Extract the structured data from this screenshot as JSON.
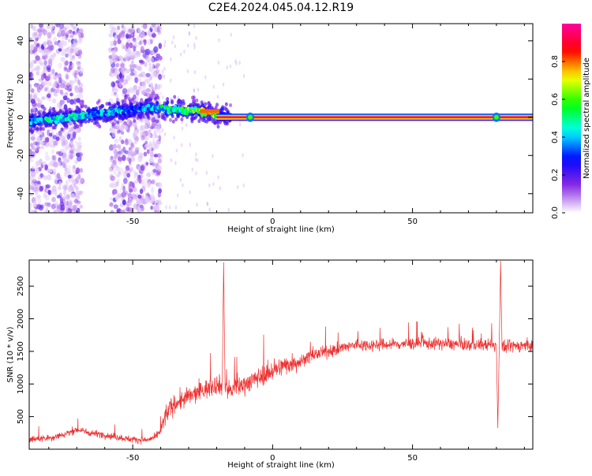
{
  "title": "C2E4.2024.045.04.12.R19",
  "chart_data": [
    {
      "type": "heatmap",
      "xlabel": "Height of straight line (km)",
      "ylabel": "Frequency (Hz)",
      "xlim": [
        -87,
        93
      ],
      "ylim": [
        -50,
        49
      ],
      "xticks": [
        -50,
        0,
        50
      ],
      "yticks": [
        -40,
        -20,
        0,
        20,
        40
      ],
      "colorbar": {
        "label": "Normalized spectral amplitude",
        "range": [
          0,
          1
        ],
        "ticks": [
          "0.0",
          "0.2",
          "0.4",
          "0.6",
          "0.8"
        ],
        "colormap": [
          "#ffffff",
          "#8a2be2",
          "#0000ff",
          "#00ffff",
          "#00ff00",
          "#ffff00",
          "#ff0000",
          "#ff00a0"
        ]
      },
      "ridge": [
        {
          "x": -87,
          "y": -2,
          "amp": 0.45
        },
        {
          "x": -80,
          "y": -1,
          "amp": 0.5
        },
        {
          "x": -72,
          "y": 0,
          "amp": 0.5
        },
        {
          "x": -62,
          "y": 2,
          "amp": 0.45
        },
        {
          "x": -55,
          "y": 3,
          "amp": 0.45
        },
        {
          "x": -50,
          "y": 4,
          "amp": 0.35
        },
        {
          "x": -42,
          "y": 5,
          "amp": 0.5
        },
        {
          "x": -35,
          "y": 4,
          "amp": 0.55
        },
        {
          "x": -25,
          "y": 3,
          "amp": 0.75
        },
        {
          "x": -20,
          "y": 1,
          "amp": 0.9
        },
        {
          "x": 0,
          "y": 0,
          "amp": 1.0
        },
        {
          "x": 50,
          "y": 0,
          "amp": 1.0
        },
        {
          "x": 93,
          "y": 0,
          "amp": 1.0
        }
      ],
      "noise_bands_x": [
        [
          -87,
          -68
        ],
        [
          -58,
          -40
        ]
      ]
    },
    {
      "type": "line",
      "xlabel": "Height of straight line (km)",
      "ylabel": "SNR (10 * v/v)",
      "xlim": [
        -87,
        93
      ],
      "ylim": [
        0,
        2900
      ],
      "xticks": [
        -50,
        0,
        50
      ],
      "yticks": [
        500,
        1000,
        1500,
        2000,
        2500
      ],
      "color": "#ee3030",
      "x": [
        -87,
        -80,
        -75,
        -70,
        -65,
        -60,
        -55,
        -50,
        -45,
        -42,
        -40,
        -38,
        -35,
        -30,
        -25,
        -20,
        -15,
        -10,
        -5,
        0,
        5,
        10,
        15,
        20,
        25,
        30,
        40,
        50,
        60,
        70,
        78,
        82,
        86,
        93
      ],
      "values": [
        150,
        170,
        220,
        300,
        250,
        220,
        180,
        150,
        140,
        180,
        280,
        550,
        700,
        800,
        900,
        1000,
        900,
        1000,
        1100,
        1200,
        1300,
        1350,
        1450,
        1500,
        1550,
        1600,
        1600,
        1620,
        1620,
        1600,
        1600,
        1550,
        1580,
        1600
      ],
      "spikes": [
        {
          "x": -17.5,
          "y": 2880
        },
        {
          "x": 81.5,
          "y": 2880
        },
        {
          "x": 80.5,
          "y": 330
        }
      ]
    }
  ]
}
